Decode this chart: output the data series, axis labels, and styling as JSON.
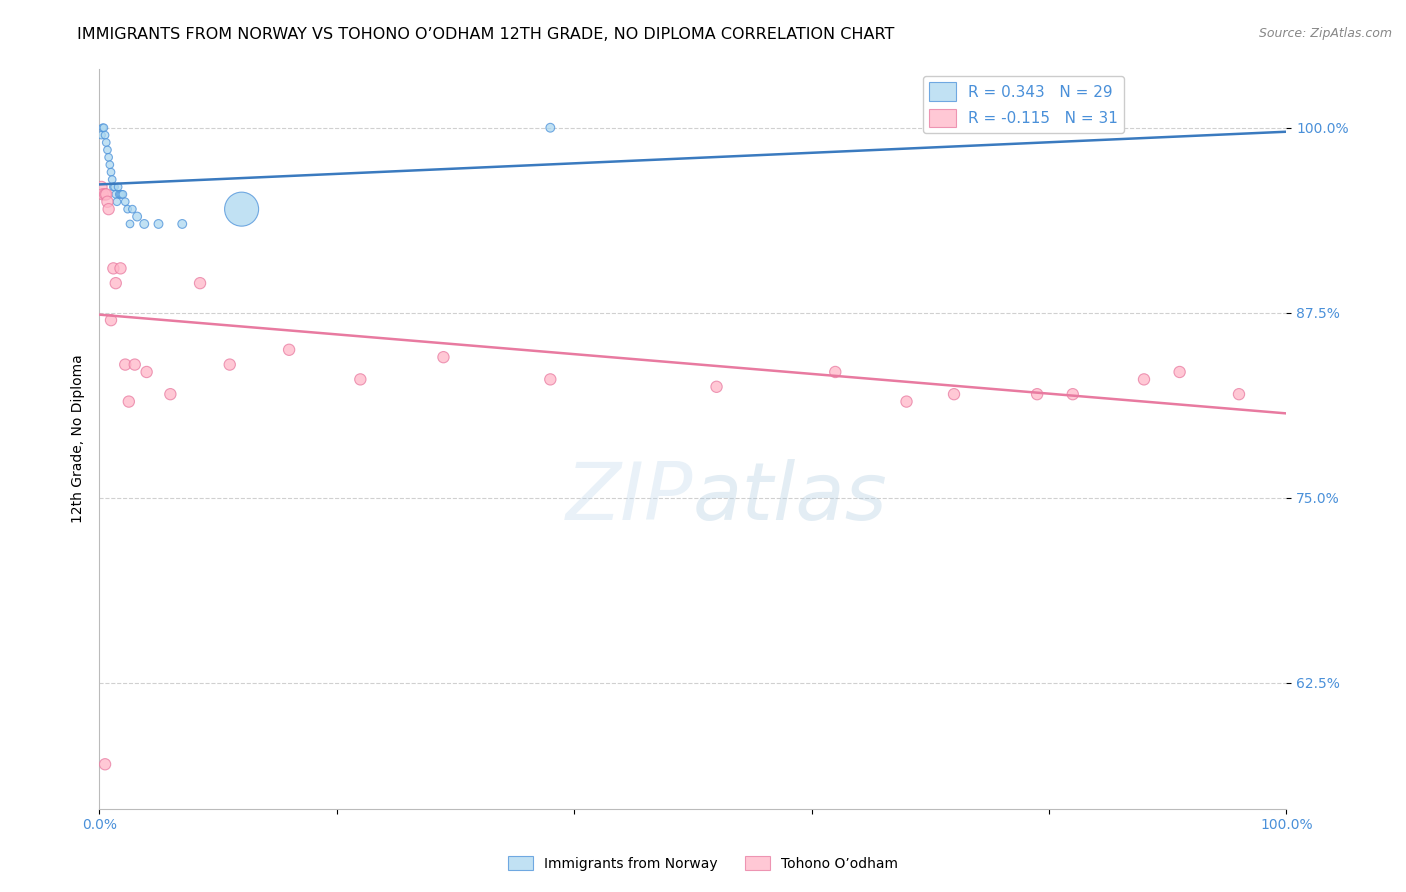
{
  "title": "IMMIGRANTS FROM NORWAY VS TOHONO O’ODHAM 12TH GRADE, NO DIPLOMA CORRELATION CHART",
  "source": "Source: ZipAtlas.com",
  "ylabel": "12th Grade, No Diploma",
  "blue_label": "Immigrants from Norway",
  "pink_label": "Tohono O’odham",
  "blue_R": 0.343,
  "blue_N": 29,
  "pink_R": -0.115,
  "pink_N": 31,
  "blue_color": "#add8f0",
  "blue_edge_color": "#4a90d9",
  "blue_line_color": "#3a7abf",
  "pink_color": "#ffb6c8",
  "pink_edge_color": "#e87aa0",
  "pink_line_color": "#e87aa0",
  "background_color": "#ffffff",
  "grid_color": "#d0d0d0",
  "right_tick_color": "#4a90d9",
  "xlim": [
    0.0,
    1.0
  ],
  "ylim": [
    0.54,
    1.04
  ],
  "yticks": [
    0.625,
    0.75,
    0.875,
    1.0
  ],
  "ytick_labels": [
    "62.5%",
    "75.0%",
    "87.5%",
    "100.0%"
  ],
  "xticks": [
    0.0,
    0.2,
    0.4,
    0.6,
    0.8,
    1.0
  ],
  "xtick_labels": [
    "0.0%",
    "",
    "",
    "",
    "",
    "100.0%"
  ],
  "blue_x": [
    0.002,
    0.003,
    0.004,
    0.005,
    0.006,
    0.007,
    0.008,
    0.009,
    0.01,
    0.011,
    0.012,
    0.013,
    0.014,
    0.015,
    0.016,
    0.017,
    0.018,
    0.019,
    0.02,
    0.022,
    0.024,
    0.026,
    0.028,
    0.032,
    0.038,
    0.05,
    0.07,
    0.12,
    0.38
  ],
  "blue_y": [
    0.995,
    1.0,
    1.0,
    0.995,
    0.99,
    0.985,
    0.98,
    0.975,
    0.97,
    0.965,
    0.96,
    0.96,
    0.955,
    0.95,
    0.96,
    0.955,
    0.955,
    0.955,
    0.955,
    0.95,
    0.945,
    0.935,
    0.945,
    0.94,
    0.935,
    0.935,
    0.935,
    0.945,
    1.0
  ],
  "blue_sizes": [
    30,
    30,
    30,
    30,
    30,
    30,
    30,
    30,
    30,
    30,
    30,
    30,
    30,
    30,
    30,
    30,
    30,
    30,
    30,
    30,
    30,
    30,
    30,
    40,
    40,
    40,
    40,
    600,
    40
  ],
  "pink_x": [
    0.002,
    0.003,
    0.005,
    0.006,
    0.007,
    0.008,
    0.01,
    0.012,
    0.014,
    0.018,
    0.022,
    0.025,
    0.03,
    0.04,
    0.06,
    0.085,
    0.11,
    0.16,
    0.22,
    0.29,
    0.38,
    0.52,
    0.62,
    0.68,
    0.72,
    0.79,
    0.82,
    0.88,
    0.91,
    0.96,
    0.005
  ],
  "pink_y": [
    0.96,
    0.955,
    0.955,
    0.955,
    0.95,
    0.945,
    0.87,
    0.905,
    0.895,
    0.905,
    0.84,
    0.815,
    0.84,
    0.835,
    0.82,
    0.895,
    0.84,
    0.85,
    0.83,
    0.845,
    0.83,
    0.825,
    0.835,
    0.815,
    0.82,
    0.82,
    0.82,
    0.83,
    0.835,
    0.82,
    0.57
  ],
  "pink_sizes": [
    30,
    30,
    30,
    30,
    30,
    30,
    30,
    30,
    30,
    30,
    30,
    30,
    30,
    30,
    30,
    30,
    30,
    30,
    30,
    30,
    30,
    30,
    30,
    30,
    30,
    30,
    30,
    30,
    30,
    30,
    30
  ],
  "watermark": "ZIPatlas",
  "watermark_zip_color": "#c8dff0",
  "watermark_atlas_color": "#c8dff0",
  "title_fontsize": 11.5,
  "axis_label_fontsize": 10,
  "tick_fontsize": 10,
  "legend_fontsize": 11,
  "source_fontsize": 9
}
